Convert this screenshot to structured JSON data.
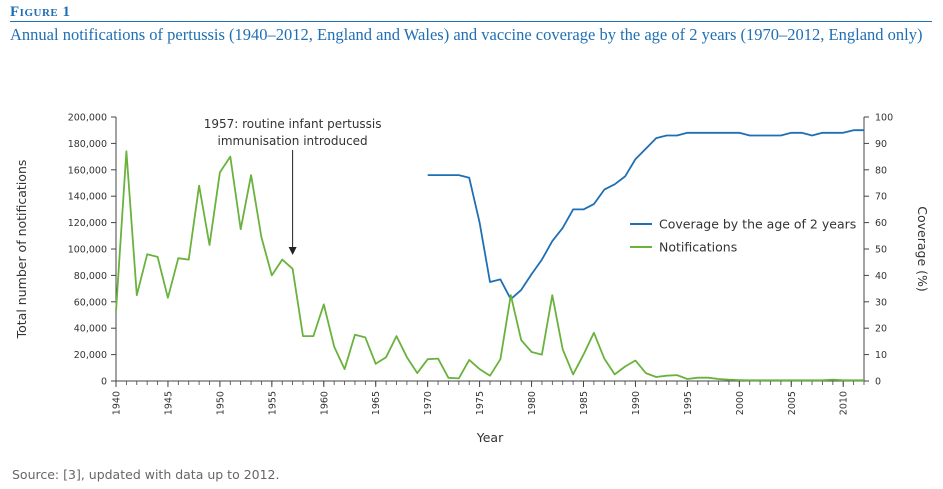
{
  "figure_label": "Figure 1",
  "title": "Annual notifications of pertussis (1940–2012, England and Wales) and vaccine coverage by the age of 2 years (1970–2012, England only)",
  "source": "Source: [3], updated with data up to 2012.",
  "colors": {
    "coverage": "#1f6fb5",
    "notifications": "#6ab23e",
    "title": "#1f6fb5"
  },
  "chart_data": {
    "type": "line",
    "xlabel": "Year",
    "ylabel_left": "Total number of notifications",
    "ylabel_right": "Coverage (%)",
    "xlim": [
      1940,
      2012
    ],
    "ylim_left": [
      0,
      200000
    ],
    "ylim_right": [
      0,
      100
    ],
    "x_ticks": [
      1940,
      1945,
      1950,
      1955,
      1960,
      1965,
      1970,
      1975,
      1980,
      1985,
      1990,
      1995,
      2000,
      2005,
      2010
    ],
    "y_ticks_left": [
      0,
      20000,
      40000,
      60000,
      80000,
      100000,
      120000,
      140000,
      160000,
      180000,
      200000
    ],
    "y_tick_labels_left": [
      "0",
      "20,000",
      "40,000",
      "60,000",
      "80,000",
      "100,000",
      "120,000",
      "140,000",
      "160,000",
      "180,000",
      "200,000"
    ],
    "y_ticks_right": [
      0,
      10,
      20,
      30,
      40,
      50,
      60,
      70,
      80,
      90,
      100
    ],
    "annotation": {
      "line1": "1957: routine infant pertussis",
      "line2": "immunisation introduced",
      "year": 1957
    },
    "legend_position": "right",
    "series": [
      {
        "name": "Coverage by the age of 2 years",
        "axis": "right",
        "x": [
          1970,
          1971,
          1972,
          1973,
          1974,
          1975,
          1976,
          1977,
          1978,
          1979,
          1980,
          1981,
          1982,
          1983,
          1984,
          1985,
          1986,
          1987,
          1988,
          1989,
          1990,
          1991,
          1992,
          1993,
          1994,
          1995,
          1996,
          1997,
          1998,
          1999,
          2000,
          2001,
          2002,
          2003,
          2004,
          2005,
          2006,
          2007,
          2008,
          2009,
          2010,
          2011,
          2012
        ],
        "values": [
          78,
          78,
          78,
          78,
          77,
          60,
          37.5,
          38.5,
          31,
          34.5,
          40.5,
          46,
          53,
          58,
          65,
          65,
          67,
          72.5,
          74.5,
          77.5,
          84,
          88,
          92,
          93,
          93,
          94,
          94,
          94,
          94,
          94,
          94,
          93,
          93,
          93,
          93,
          94,
          94,
          93,
          94,
          94,
          94,
          95,
          95
        ]
      },
      {
        "name": "Notifications",
        "axis": "left",
        "x": [
          1940,
          1941,
          1942,
          1943,
          1944,
          1945,
          1946,
          1947,
          1948,
          1949,
          1950,
          1951,
          1952,
          1953,
          1954,
          1955,
          1956,
          1957,
          1958,
          1959,
          1960,
          1961,
          1962,
          1963,
          1964,
          1965,
          1966,
          1967,
          1968,
          1969,
          1970,
          1971,
          1972,
          1973,
          1974,
          1975,
          1976,
          1977,
          1978,
          1979,
          1980,
          1981,
          1982,
          1983,
          1984,
          1985,
          1986,
          1987,
          1988,
          1989,
          1990,
          1991,
          1992,
          1993,
          1994,
          1995,
          1996,
          1997,
          1998,
          1999,
          2000,
          2001,
          2002,
          2003,
          2004,
          2005,
          2006,
          2007,
          2008,
          2009,
          2010,
          2011,
          2012
        ],
        "values": [
          53000,
          174000,
          65000,
          96000,
          94000,
          63000,
          93000,
          92000,
          148000,
          103000,
          158000,
          170000,
          115000,
          156000,
          109000,
          80000,
          92000,
          85000,
          34000,
          34000,
          58000,
          26000,
          9000,
          35000,
          33000,
          13000,
          18000,
          34000,
          18000,
          6000,
          16500,
          17000,
          2400,
          2000,
          16000,
          9000,
          4000,
          16500,
          65000,
          31000,
          22000,
          20000,
          65000,
          24000,
          5000,
          20000,
          36500,
          17000,
          5000,
          11000,
          15500,
          6000,
          3000,
          4000,
          4500,
          1500,
          2500,
          2500,
          1500,
          1000,
          700,
          500,
          500,
          500,
          500,
          500,
          500,
          500,
          500,
          1000,
          500,
          500,
          500
        ]
      }
    ]
  }
}
